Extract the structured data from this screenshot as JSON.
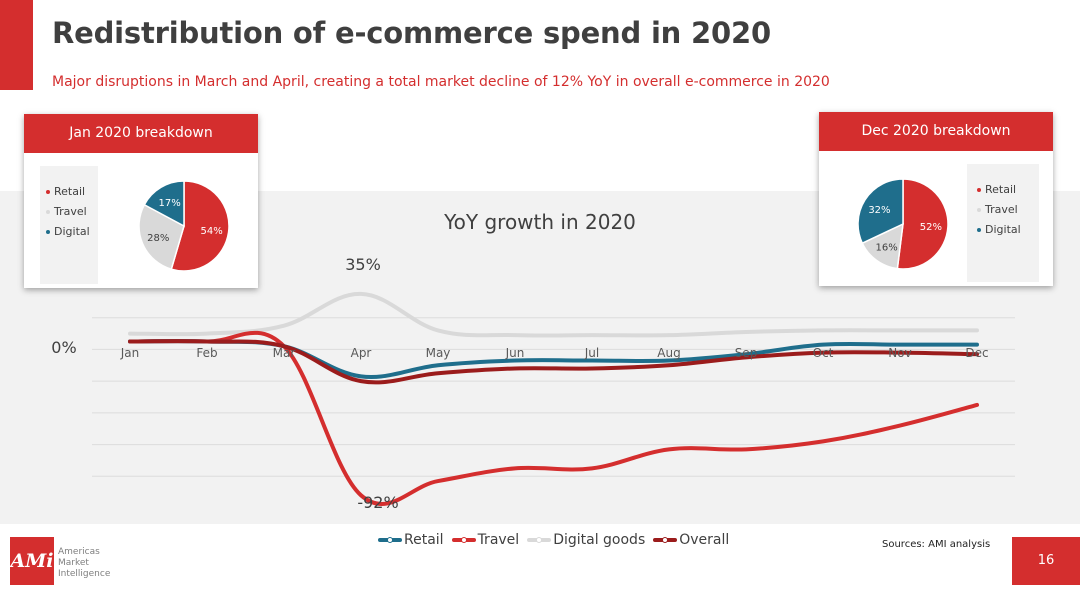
{
  "header": {
    "title": "Redistribution of e-commerce spend in 2020",
    "subtitle": "Major disruptions in March and April, creating a total market decline of 12% YoY in overall e-commerce in 2020"
  },
  "jan_breakdown": {
    "title": "Jan 2020 breakdown",
    "legend": [
      "Retail",
      "Travel",
      "Digital"
    ],
    "slices": [
      {
        "name": "Retail",
        "value": 54,
        "label": "54%",
        "color": "#d42e2e"
      },
      {
        "name": "Travel",
        "value": 28,
        "label": "28%",
        "color": "#d9d9d9"
      },
      {
        "name": "Digital",
        "value": 17,
        "label": "17%",
        "color": "#1f6e8c"
      }
    ]
  },
  "dec_breakdown": {
    "title": "Dec 2020 breakdown",
    "legend": [
      "Retail",
      "Travel",
      "Digital"
    ],
    "slices": [
      {
        "name": "Retail",
        "value": 52,
        "label": "52%",
        "color": "#d42e2e"
      },
      {
        "name": "Travel",
        "value": 16,
        "label": "16%",
        "color": "#d9d9d9"
      },
      {
        "name": "Digital",
        "value": 32,
        "label": "32%",
        "color": "#1f6e8c"
      }
    ]
  },
  "chart_data": {
    "type": "line",
    "title": "YoY growth in 2020",
    "categories": [
      "Jan",
      "Feb",
      "Mar",
      "Apr",
      "May",
      "Jun",
      "Jul",
      "Aug",
      "Sep",
      "Oct",
      "Nov",
      "Dec"
    ],
    "ylim": [
      -100,
      40
    ],
    "grid": true,
    "legend_position": "bottom",
    "series": [
      {
        "name": "Retail",
        "color": "#1f6e8c",
        "values": [
          5,
          5,
          2,
          -17,
          -10,
          -7,
          -7,
          -7,
          -3,
          3,
          3,
          3
        ]
      },
      {
        "name": "Travel",
        "color": "#d42e2e",
        "values": [
          5,
          5,
          2,
          -92,
          -83,
          -75,
          -75,
          -63,
          -63,
          -58,
          -48,
          -35
        ]
      },
      {
        "name": "Digital goods",
        "color": "#d9d9d9",
        "values": [
          10,
          10,
          15,
          35,
          12,
          9,
          9,
          9,
          11,
          12,
          12,
          12
        ]
      },
      {
        "name": "Overall",
        "color": "#9b1c1c",
        "values": [
          5,
          5,
          2,
          -20,
          -15,
          -12,
          -12,
          -10,
          -5,
          -2,
          -2,
          -3
        ]
      }
    ],
    "annotations": [
      {
        "text": "35%",
        "x": "Apr",
        "y": 35
      },
      {
        "text": "-92%",
        "x": "Apr",
        "y": -92
      },
      {
        "text": "0%",
        "x": "Jan",
        "y": 0
      }
    ]
  },
  "footer": {
    "sources": "Sources: AMI analysis",
    "page_number": "16",
    "logo_mark": "AMi",
    "logo_name": [
      "Americas",
      "Market",
      "Intelligence"
    ]
  }
}
